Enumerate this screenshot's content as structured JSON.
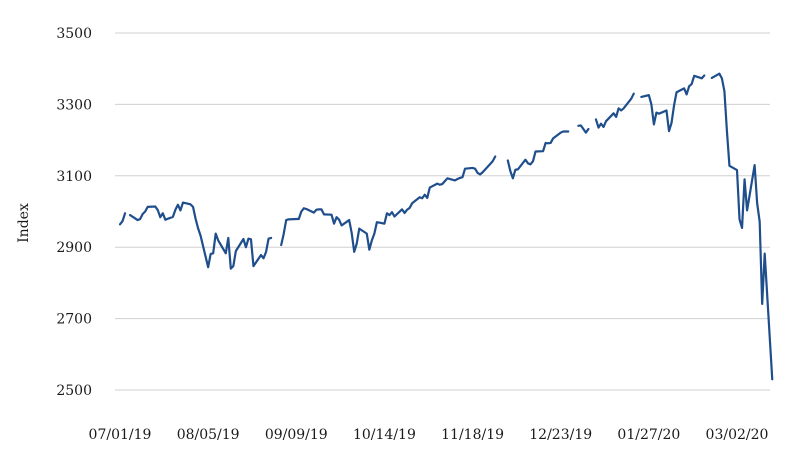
{
  "chart_data": {
    "type": "line",
    "title": "",
    "xlabel": "",
    "ylabel": "Index",
    "ylim": [
      2500,
      3500
    ],
    "yticks": [
      2500,
      2700,
      2900,
      3100,
      3300,
      3500
    ],
    "ytick_labels": [
      "2500",
      "2700",
      "2900",
      "3100",
      "3300",
      "3500"
    ],
    "grid": "horizontal",
    "colors": {
      "line": "#1f4e8c",
      "grid": "#d0d0d0"
    },
    "x_tick_labels": [
      {
        "date": "2019-07-01",
        "label": "07/01/19"
      },
      {
        "date": "2019-08-05",
        "label": "08/05/19"
      },
      {
        "date": "2019-09-09",
        "label": "09/09/19"
      },
      {
        "date": "2019-10-14",
        "label": "10/14/19"
      },
      {
        "date": "2019-11-18",
        "label": "11/18/19"
      },
      {
        "date": "2019-12-23",
        "label": "12/23/19"
      },
      {
        "date": "2020-01-27",
        "label": "01/27/20"
      },
      {
        "date": "2020-03-02",
        "label": "03/02/20"
      }
    ],
    "series": [
      {
        "segments": [
          [
            [
              "2019-07-01",
              2964
            ],
            [
              "2019-07-02",
              2973
            ],
            [
              "2019-07-03",
              2995
            ]
          ],
          [
            [
              "2019-07-05",
              2990
            ],
            [
              "2019-07-08",
              2976
            ],
            [
              "2019-07-09",
              2979
            ],
            [
              "2019-07-10",
              2993
            ],
            [
              "2019-07-11",
              3000
            ],
            [
              "2019-07-12",
              3013
            ],
            [
              "2019-07-15",
              3014
            ],
            [
              "2019-07-16",
              3004
            ],
            [
              "2019-07-17",
              2984
            ],
            [
              "2019-07-18",
              2995
            ],
            [
              "2019-07-19",
              2977
            ],
            [
              "2019-07-22",
              2985
            ],
            [
              "2019-07-23",
              3005
            ],
            [
              "2019-07-24",
              3019
            ],
            [
              "2019-07-25",
              3003
            ],
            [
              "2019-07-26",
              3025
            ],
            [
              "2019-07-29",
              3020
            ],
            [
              "2019-07-30",
              3013
            ],
            [
              "2019-07-31",
              2980
            ],
            [
              "2019-08-01",
              2953
            ],
            [
              "2019-08-02",
              2932
            ],
            [
              "2019-08-05",
              2844
            ],
            [
              "2019-08-06",
              2881
            ],
            [
              "2019-08-07",
              2883
            ],
            [
              "2019-08-08",
              2938
            ],
            [
              "2019-08-09",
              2919
            ],
            [
              "2019-08-12",
              2883
            ],
            [
              "2019-08-13",
              2926
            ],
            [
              "2019-08-14",
              2840
            ],
            [
              "2019-08-15",
              2847
            ],
            [
              "2019-08-16",
              2889
            ],
            [
              "2019-08-19",
              2923
            ],
            [
              "2019-08-20",
              2900
            ],
            [
              "2019-08-21",
              2924
            ],
            [
              "2019-08-22",
              2922
            ],
            [
              "2019-08-23",
              2847
            ],
            [
              "2019-08-26",
              2878
            ],
            [
              "2019-08-27",
              2869
            ],
            [
              "2019-08-28",
              2887
            ],
            [
              "2019-08-29",
              2924
            ],
            [
              "2019-08-30",
              2926
            ]
          ],
          [
            [
              "2019-09-03",
              2906
            ],
            [
              "2019-09-04",
              2937
            ],
            [
              "2019-09-05",
              2976
            ],
            [
              "2019-09-06",
              2978
            ],
            [
              "2019-09-09",
              2979
            ],
            [
              "2019-09-10",
              2979
            ],
            [
              "2019-09-11",
              3000
            ],
            [
              "2019-09-12",
              3009
            ],
            [
              "2019-09-13",
              3007
            ],
            [
              "2019-09-16",
              2997
            ],
            [
              "2019-09-17",
              3005
            ],
            [
              "2019-09-18",
              3006
            ],
            [
              "2019-09-19",
              3006
            ],
            [
              "2019-09-20",
              2992
            ],
            [
              "2019-09-23",
              2991
            ],
            [
              "2019-09-24",
              2966
            ],
            [
              "2019-09-25",
              2984
            ],
            [
              "2019-09-26",
              2977
            ],
            [
              "2019-09-27",
              2961
            ],
            [
              "2019-09-30",
              2976
            ],
            [
              "2019-10-01",
              2940
            ],
            [
              "2019-10-02",
              2887
            ],
            [
              "2019-10-03",
              2910
            ],
            [
              "2019-10-04",
              2952
            ],
            [
              "2019-10-07",
              2938
            ],
            [
              "2019-10-08",
              2893
            ],
            [
              "2019-10-09",
              2919
            ],
            [
              "2019-10-10",
              2938
            ],
            [
              "2019-10-11",
              2970
            ],
            [
              "2019-10-14",
              2966
            ],
            [
              "2019-10-15",
              2995
            ],
            [
              "2019-10-16",
              2990
            ],
            [
              "2019-10-17",
              2998
            ],
            [
              "2019-10-18",
              2986
            ],
            [
              "2019-10-21",
              3006
            ],
            [
              "2019-10-22",
              2996
            ],
            [
              "2019-10-23",
              3005
            ],
            [
              "2019-10-24",
              3010
            ],
            [
              "2019-10-25",
              3023
            ],
            [
              "2019-10-28",
              3040
            ],
            [
              "2019-10-29",
              3037
            ],
            [
              "2019-10-30",
              3047
            ],
            [
              "2019-10-31",
              3038
            ],
            [
              "2019-11-01",
              3067
            ],
            [
              "2019-11-04",
              3078
            ],
            [
              "2019-11-05",
              3075
            ],
            [
              "2019-11-06",
              3077
            ],
            [
              "2019-11-07",
              3085
            ],
            [
              "2019-11-08",
              3093
            ],
            [
              "2019-11-11",
              3087
            ],
            [
              "2019-11-12",
              3091
            ],
            [
              "2019-11-13",
              3094
            ],
            [
              "2019-11-14",
              3096
            ],
            [
              "2019-11-15",
              3120
            ],
            [
              "2019-11-18",
              3122
            ],
            [
              "2019-11-19",
              3120
            ],
            [
              "2019-11-20",
              3108
            ],
            [
              "2019-11-21",
              3104
            ],
            [
              "2019-11-22",
              3110
            ],
            [
              "2019-11-25",
              3133
            ],
            [
              "2019-11-26",
              3141
            ],
            [
              "2019-11-27",
              3154
            ]
          ],
          [
            [
              "2019-12-02",
              3143
            ],
            [
              "2019-12-03",
              3113
            ],
            [
              "2019-12-04",
              3093
            ],
            [
              "2019-12-05",
              3117
            ],
            [
              "2019-12-06",
              3118
            ],
            [
              "2019-12-09",
              3145
            ],
            [
              "2019-12-10",
              3135
            ],
            [
              "2019-12-11",
              3132
            ],
            [
              "2019-12-12",
              3141
            ],
            [
              "2019-12-13",
              3168
            ],
            [
              "2019-12-16",
              3169
            ],
            [
              "2019-12-17",
              3192
            ],
            [
              "2019-12-18",
              3191
            ],
            [
              "2019-12-19",
              3192
            ],
            [
              "2019-12-20",
              3205
            ],
            [
              "2019-12-23",
              3221
            ],
            [
              "2019-12-24",
              3224
            ],
            [
              "2019-12-26",
              3224
            ]
          ],
          [
            [
              "2019-12-30",
              3240
            ],
            [
              "2019-12-31",
              3241
            ],
            [
              "2020-01-02",
              3221
            ],
            [
              "2020-01-03",
              3231
            ]
          ],
          [
            [
              "2020-01-06",
              3258
            ],
            [
              "2020-01-07",
              3235
            ],
            [
              "2020-01-08",
              3246
            ],
            [
              "2020-01-09",
              3237
            ],
            [
              "2020-01-10",
              3253
            ],
            [
              "2020-01-13",
              3275
            ],
            [
              "2020-01-14",
              3265
            ],
            [
              "2020-01-15",
              3289
            ],
            [
              "2020-01-16",
              3283
            ],
            [
              "2020-01-17",
              3289
            ],
            [
              "2020-01-20",
              3316
            ],
            [
              "2020-01-21",
              3330
            ]
          ],
          [
            [
              "2020-01-24",
              3321
            ],
            [
              "2020-01-27",
              3326
            ],
            [
              "2020-01-28",
              3300
            ],
            [
              "2020-01-29",
              3244
            ],
            [
              "2020-01-30",
              3277
            ],
            [
              "2020-01-31",
              3274
            ],
            [
              "2020-02-03",
              3283
            ],
            [
              "2020-02-04",
              3225
            ],
            [
              "2020-02-05",
              3248
            ],
            [
              "2020-02-06",
              3297
            ],
            [
              "2020-02-07",
              3334
            ],
            [
              "2020-02-10",
              3345
            ],
            [
              "2020-02-11",
              3328
            ],
            [
              "2020-02-12",
              3351
            ],
            [
              "2020-02-13",
              3357
            ],
            [
              "2020-02-14",
              3380
            ],
            [
              "2020-02-17",
              3373
            ],
            [
              "2020-02-18",
              3381
            ]
          ],
          [
            [
              "2020-02-21",
              3374
            ],
            [
              "2020-02-24",
              3386
            ],
            [
              "2020-02-25",
              3373
            ],
            [
              "2020-02-26",
              3337
            ],
            [
              "2020-02-27",
              3225
            ],
            [
              "2020-02-28",
              3128
            ],
            [
              "2020-03-02",
              3116
            ],
            [
              "2020-03-03",
              2978
            ],
            [
              "2020-03-04",
              2954
            ],
            [
              "2020-03-05",
              3090
            ],
            [
              "2020-03-06",
              3003
            ],
            [
              "2020-03-09",
              3130
            ],
            [
              "2020-03-10",
              3023
            ],
            [
              "2020-03-11",
              2972
            ],
            [
              "2020-03-12",
              2741
            ],
            [
              "2020-03-13",
              2882
            ],
            [
              "2020-03-16",
              2530
            ]
          ]
        ]
      }
    ]
  }
}
